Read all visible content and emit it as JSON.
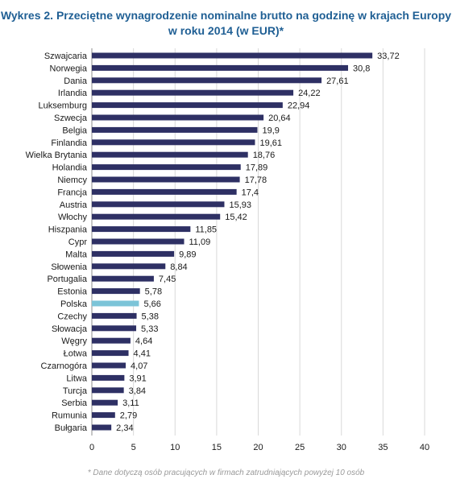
{
  "chart_data": {
    "type": "bar",
    "orientation": "horizontal",
    "title": "Wykres 2. Przeciętne wynagrodzenie nominalne brutto na godzinę w krajach Europy",
    "subtitle": "w roku 2014 (w EUR)*",
    "categories": [
      "Szwajcaria",
      "Norwegia",
      "Dania",
      "Irlandia",
      "Luksemburg",
      "Szwecja",
      "Belgia",
      "Finlandia",
      "Wielka Brytania",
      "Holandia",
      "Niemcy",
      "Francja",
      "Austria",
      "Włochy",
      "Hiszpania",
      "Cypr",
      "Malta",
      "Słowenia",
      "Portugalia",
      "Estonia",
      "Polska",
      "Czechy",
      "Słowacja",
      "Węgry",
      "Łotwa",
      "Czarnogóra",
      "Litwa",
      "Turcja",
      "Serbia",
      "Rumunia",
      "Bułgaria"
    ],
    "values": [
      33.72,
      30.8,
      27.61,
      24.22,
      22.94,
      20.64,
      19.9,
      19.61,
      18.76,
      17.89,
      17.78,
      17.4,
      15.93,
      15.42,
      11.85,
      11.09,
      9.89,
      8.84,
      7.45,
      5.78,
      5.66,
      5.38,
      5.33,
      4.64,
      4.41,
      4.07,
      3.91,
      3.84,
      3.11,
      2.79,
      2.34
    ],
    "value_labels": [
      "33,72",
      "30,8",
      "27,61",
      "24,22",
      "22,94",
      "20,64",
      "19,9",
      "19,61",
      "18,76",
      "17,89",
      "17,78",
      "17,4",
      "15,93",
      "15,42",
      "11,85",
      "11,09",
      "9,89",
      "8,84",
      "7,45",
      "5,78",
      "5,66",
      "5,38",
      "5,33",
      "4,64",
      "4,41",
      "4,07",
      "3,91",
      "3,84",
      "3,11",
      "2,79",
      "2,34"
    ],
    "highlight": "Polska",
    "xlim": [
      0,
      40
    ],
    "xticks": [
      0,
      5,
      10,
      15,
      20,
      25,
      30,
      35,
      40
    ],
    "grid": true,
    "colors": {
      "bar": "#2e3064",
      "highlight": "#7cc4d8",
      "grid": "#d9d9d9",
      "title": "#1f5f94"
    }
  },
  "footnote": "* Dane dotyczą osób pracujących w firmach zatrudniających powyżej 10 osób"
}
